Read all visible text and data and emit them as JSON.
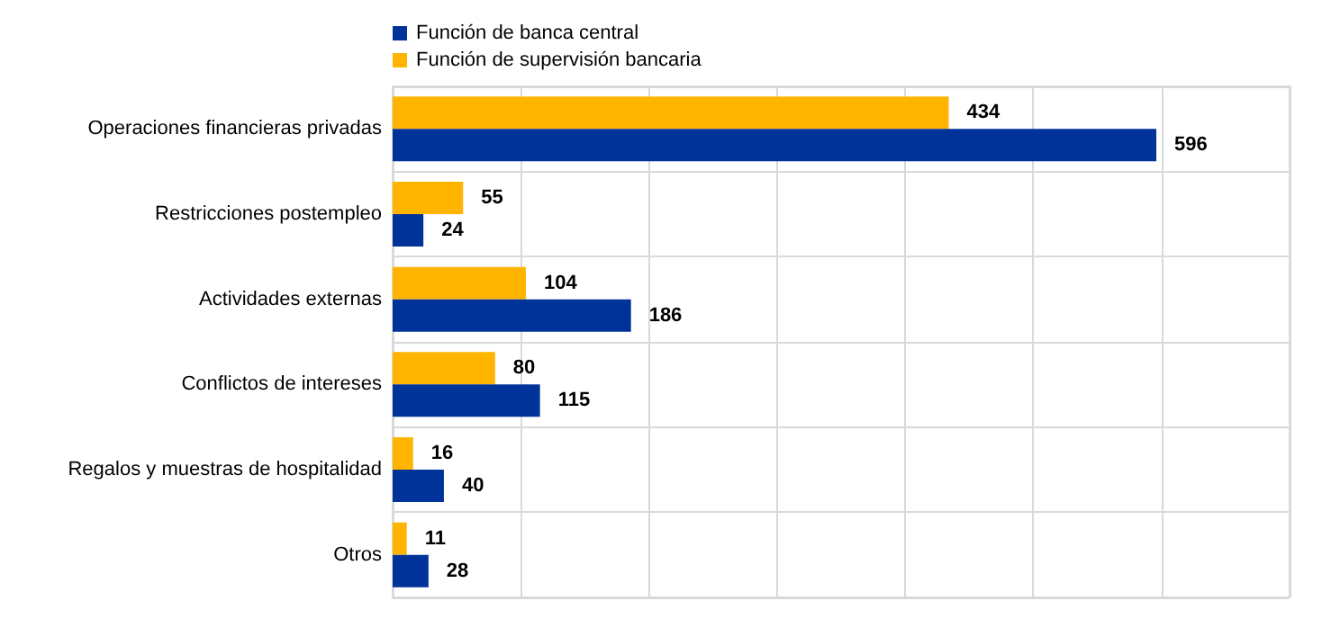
{
  "chart_data": {
    "type": "bar",
    "orientation": "horizontal",
    "categories": [
      "Operaciones financieras privadas",
      "Restricciones postempleo",
      "Actividades externas",
      "Conflictos de intereses",
      "Regalos y muestras de hospitalidad",
      "Otros"
    ],
    "series": [
      {
        "name": "Función de banca central",
        "color": "#003399",
        "values": [
          596,
          24,
          186,
          115,
          40,
          28
        ]
      },
      {
        "name": "Función de supervisión bancaria",
        "color": "#ffb400",
        "values": [
          434,
          55,
          104,
          80,
          16,
          11
        ]
      }
    ],
    "xlim": [
      0,
      700
    ],
    "xticks": [
      {
        "value": 0,
        "label": null
      },
      {
        "value": 100,
        "label": null
      },
      {
        "value": 200,
        "label": null
      },
      {
        "value": 300,
        "label": null
      },
      {
        "value": 400,
        "label": null
      },
      {
        "value": 500,
        "label": null
      },
      {
        "value": 600,
        "label": null
      },
      {
        "value": 700,
        "label": null
      }
    ],
    "tick_labels": "y",
    "grid": true,
    "legend": "top left",
    "data_labels": true
  }
}
